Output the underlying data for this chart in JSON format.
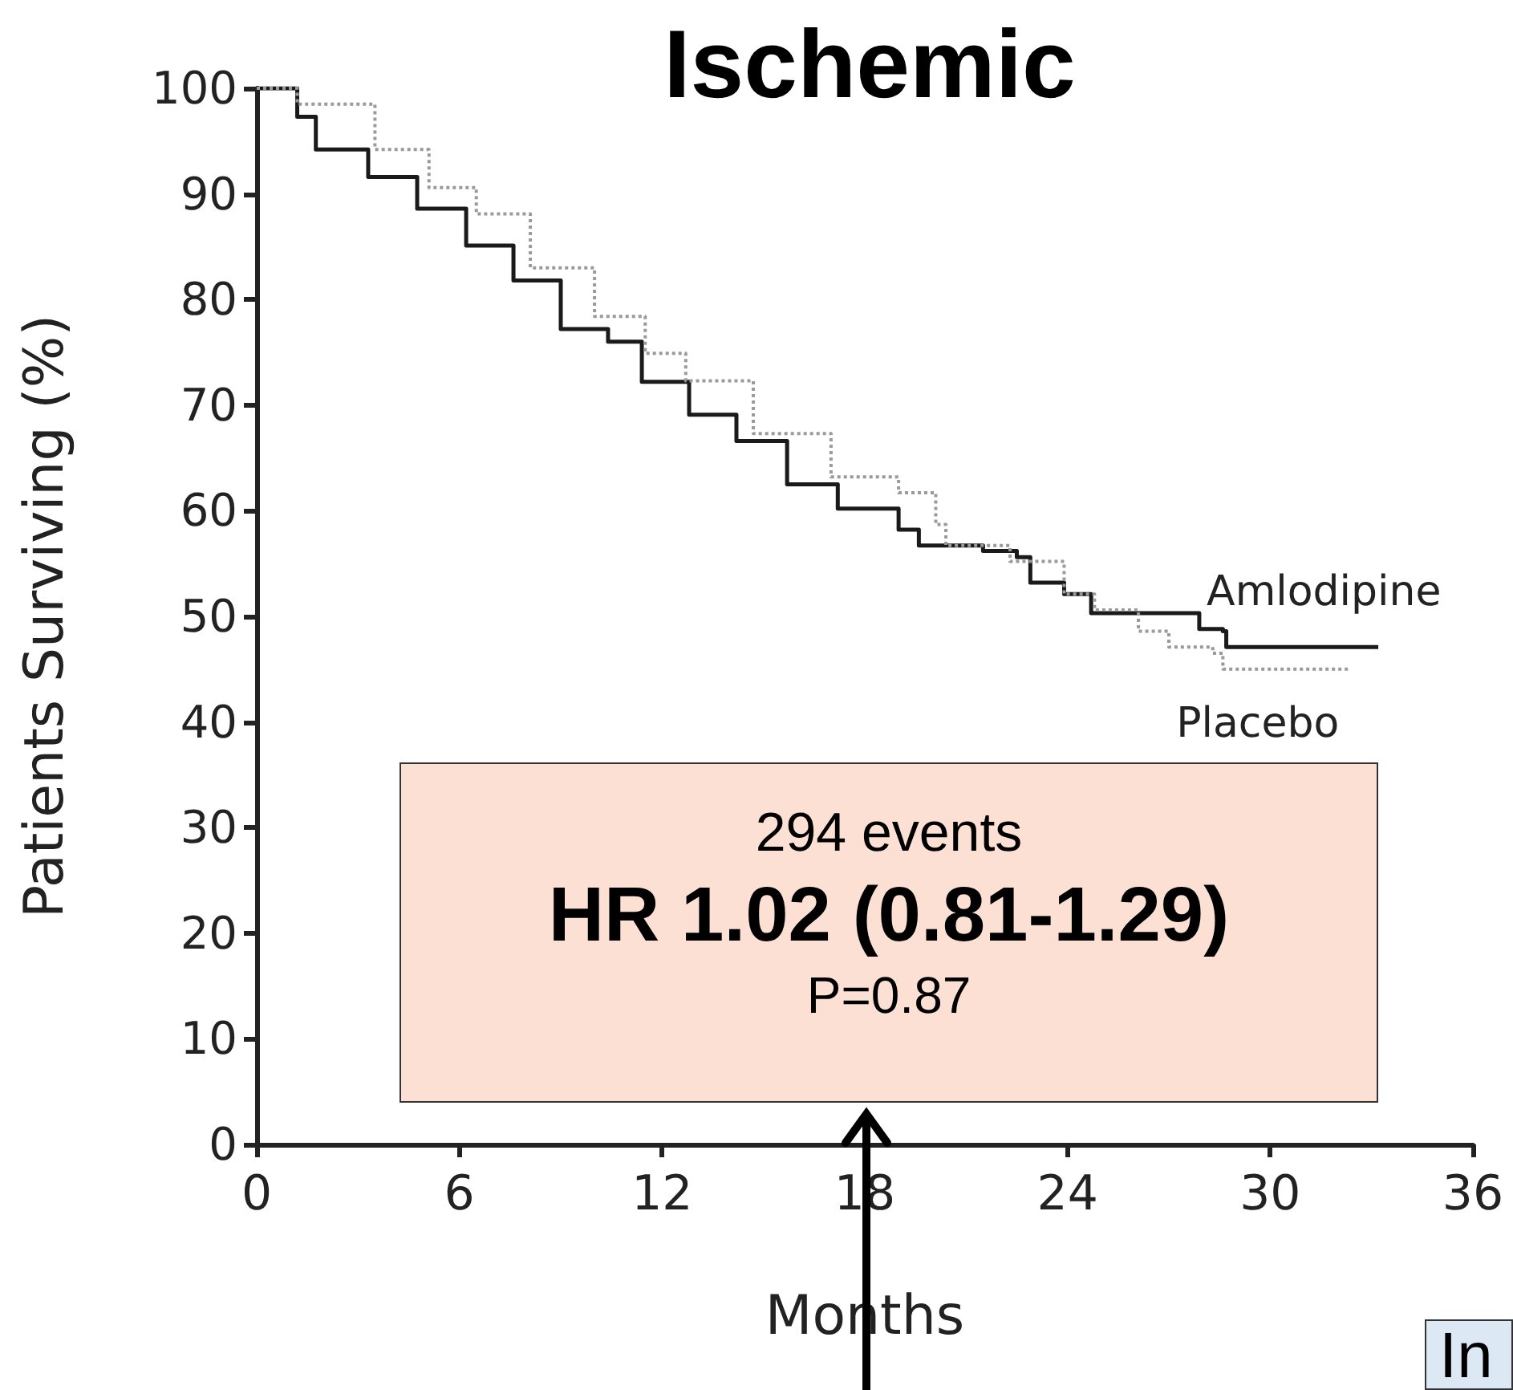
{
  "chart_data": {
    "type": "step",
    "title": "Ischemic",
    "xlabel": "Months",
    "ylabel": "Patients Surviving (%)",
    "xlim": [
      0,
      36
    ],
    "xticks": [
      0,
      6,
      12,
      18,
      24,
      30,
      36
    ],
    "ylim": [
      0,
      100
    ],
    "yticks": [
      0,
      10,
      20,
      30,
      40,
      50,
      60,
      70,
      80,
      90,
      100
    ],
    "grid": false,
    "legend": false,
    "marker": "none",
    "series": [
      {
        "name": "Amlodipine",
        "color": "#1a1a1a",
        "line_style": "solid",
        "x": [
          0,
          1.2,
          1.75,
          3.3,
          4.75,
          6.2,
          7.6,
          9.0,
          10.4,
          11.4,
          12.8,
          14.2,
          15.7,
          17.2,
          19.0,
          19.6,
          21.5,
          22.5,
          22.9,
          23.9,
          24.7,
          27.7,
          27.9,
          28.6,
          28.7,
          33.2
        ],
        "values": [
          100,
          97.3,
          94.2,
          91.6,
          88.6,
          85.1,
          81.8,
          77.2,
          76.0,
          72.2,
          69.1,
          66.6,
          62.5,
          60.2,
          58.2,
          56.7,
          56.2,
          55.6,
          53.2,
          52.1,
          50.3,
          50.3,
          48.8,
          48.6,
          47.1,
          47.1
        ]
      },
      {
        "name": "Placebo",
        "color": "#9a9a9a",
        "line_style": "dotted",
        "x": [
          0,
          1.2,
          3.5,
          5.1,
          6.5,
          8.1,
          10.0,
          11.5,
          12.7,
          14.7,
          17.0,
          19.0,
          20.1,
          20.4,
          22.3,
          23.9,
          24.8,
          26.1,
          27.0,
          28.3,
          28.6,
          32.3
        ],
        "values": [
          100,
          98.5,
          94.2,
          90.6,
          88.1,
          83.0,
          78.4,
          74.9,
          72.3,
          67.3,
          63.2,
          61.7,
          58.7,
          56.7,
          55.2,
          52.1,
          50.6,
          48.6,
          47.1,
          46.5,
          45.0,
          45.0
        ]
      }
    ],
    "annotations": [
      "294 events",
      "HR 1.02 (0.81-1.29)",
      "P=0.87",
      "In"
    ]
  }
}
